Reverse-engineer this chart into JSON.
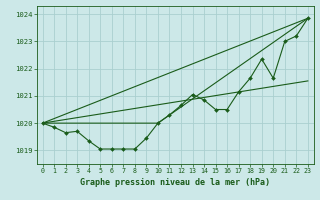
{
  "title": "Graphe pression niveau de la mer (hPa)",
  "bg_color": "#cce8e8",
  "grid_color": "#aacfcf",
  "line_color": "#1a5c1a",
  "xlim": [
    -0.5,
    23.5
  ],
  "ylim": [
    1018.5,
    1024.3
  ],
  "yticks": [
    1019,
    1020,
    1021,
    1022,
    1023,
    1024
  ],
  "xticks": [
    0,
    1,
    2,
    3,
    4,
    5,
    6,
    7,
    8,
    9,
    10,
    11,
    12,
    13,
    14,
    15,
    16,
    17,
    18,
    19,
    20,
    21,
    22,
    23
  ],
  "line1": {
    "x": [
      0,
      23
    ],
    "y": [
      1020.0,
      1023.85
    ]
  },
  "line2": {
    "x": [
      0,
      23
    ],
    "y": [
      1020.0,
      1021.55
    ]
  },
  "line3": {
    "x": [
      0,
      10,
      23
    ],
    "y": [
      1020.0,
      1020.0,
      1023.85
    ]
  },
  "main": {
    "x": [
      0,
      1,
      2,
      3,
      4,
      5,
      6,
      7,
      8,
      9,
      10,
      11,
      12,
      13,
      14,
      15,
      16,
      17,
      18,
      19,
      20,
      21,
      22,
      23
    ],
    "y": [
      1020.0,
      1019.85,
      1019.65,
      1019.7,
      1019.35,
      1019.05,
      1019.05,
      1019.05,
      1019.05,
      1019.45,
      1020.0,
      1020.3,
      1020.65,
      1021.05,
      1020.85,
      1020.5,
      1020.5,
      1021.15,
      1021.65,
      1022.35,
      1021.65,
      1023.0,
      1023.2,
      1023.85
    ]
  }
}
